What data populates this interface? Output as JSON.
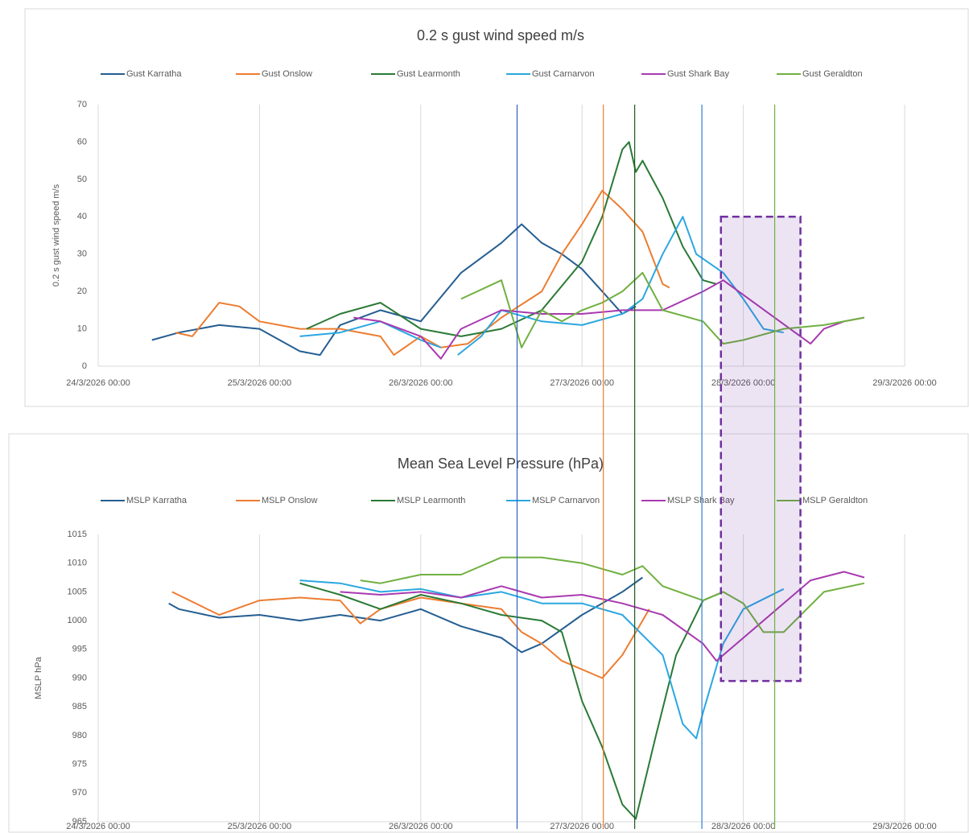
{
  "chart_data": [
    {
      "type": "line",
      "title": "0.2 s gust wind speed m/s",
      "ylabel": "0.2 s gust wind speed m/s",
      "xlim": [
        "24/3/2026 00:00",
        "29/3/2026 00:00"
      ],
      "xticks": [
        "24/3/2026 00:00",
        "25/3/2026 00:00",
        "26/3/2026 00:00",
        "27/3/2026 00:00",
        "28/3/2026 00:00",
        "29/3/2026 00:00"
      ],
      "ylim": [
        0,
        70
      ],
      "yticks": [
        0,
        10,
        20,
        30,
        40,
        50,
        60,
        70
      ],
      "grid": "x",
      "series": [
        {
          "name": "Gust Karratha",
          "color": "#255e91",
          "x": [
            "24/3/2026 08:00",
            "24/3/2026 12:00",
            "24/3/2026 18:00",
            "25/3/2026 00:00",
            "25/3/2026 06:00",
            "25/3/2026 09:00",
            "25/3/2026 12:00",
            "25/3/2026 18:00",
            "26/3/2026 00:00",
            "26/3/2026 06:00",
            "26/3/2026 12:00",
            "26/3/2026 15:00",
            "26/3/2026 18:00",
            "26/3/2026 21:00",
            "27/3/2026 00:00",
            "27/3/2026 03:00",
            "27/3/2026 06:00",
            "27/3/2026 08:00"
          ],
          "values": [
            7,
            9,
            11,
            10,
            4,
            3,
            11,
            15,
            12,
            25,
            33,
            38,
            33,
            30,
            26,
            20,
            14,
            16
          ]
        },
        {
          "name": "Gust Onslow",
          "color": "#ed7d31",
          "x": [
            "24/3/2026 11:30",
            "24/3/2026 14:00",
            "24/3/2026 18:00",
            "24/3/2026 21:00",
            "25/3/2026 00:00",
            "25/3/2026 06:00",
            "25/3/2026 12:00",
            "25/3/2026 18:00",
            "25/3/2026 20:00",
            "26/3/2026 00:00",
            "26/3/2026 03:00",
            "26/3/2026 07:00",
            "26/3/2026 12:00",
            "26/3/2026 18:00",
            "26/3/2026 21:00",
            "27/3/2026 00:00",
            "27/3/2026 03:00",
            "27/3/2026 06:00",
            "27/3/2026 09:00",
            "27/3/2026 12:00",
            "27/3/2026 13:00"
          ],
          "values": [
            9,
            8,
            17,
            16,
            12,
            10,
            10,
            8,
            3,
            8,
            5,
            6,
            13,
            20,
            30,
            38,
            47,
            42,
            36,
            22,
            21
          ]
        },
        {
          "name": "Gust Learmonth",
          "color": "#2a7a35",
          "x": [
            "25/3/2026 07:00",
            "25/3/2026 12:00",
            "25/3/2026 18:00",
            "26/3/2026 00:00",
            "26/3/2026 06:00",
            "26/3/2026 12:00",
            "26/3/2026 18:00",
            "27/3/2026 00:00",
            "27/3/2026 03:00",
            "27/3/2026 06:00",
            "27/3/2026 07:00",
            "27/3/2026 08:00",
            "27/3/2026 09:00",
            "27/3/2026 12:00",
            "27/3/2026 15:00",
            "27/3/2026 18:00",
            "27/3/2026 20:00"
          ],
          "values": [
            10,
            14,
            17,
            10,
            8,
            10,
            15,
            28,
            40,
            58,
            60,
            52,
            55,
            45,
            32,
            23,
            22
          ]
        },
        {
          "name": "Gust Carnarvon",
          "color": "#2aa7e0",
          "x": [
            "25/3/2026 06:00",
            "25/3/2026 12:00",
            "25/3/2026 18:00",
            "26/3/2026 00:00",
            "26/3/2026 03:00",
            "26/3/2026 04:00",
            "26/3/2026 05:30",
            "26/3/2026 09:00",
            "26/3/2026 12:00",
            "26/3/2026 18:00",
            "27/3/2026 00:00",
            "27/3/2026 06:00",
            "27/3/2026 09:00",
            "27/3/2026 12:00",
            "27/3/2026 15:00",
            "27/3/2026 17:00",
            "27/3/2026 21:00",
            "28/3/2026 00:00",
            "28/3/2026 03:00",
            "28/3/2026 06:00"
          ],
          "values": [
            8,
            9,
            12,
            7,
            5,
            null,
            3,
            8,
            15,
            12,
            11,
            14,
            18,
            30,
            40,
            30,
            25,
            18,
            10,
            9
          ]
        },
        {
          "name": "Gust Shark Bay",
          "color": "#a83ab0",
          "x": [
            "25/3/2026 14:00",
            "25/3/2026 18:00",
            "26/3/2026 00:00",
            "26/3/2026 03:00",
            "26/3/2026 06:00",
            "26/3/2026 12:00",
            "26/3/2026 18:00",
            "27/3/2026 00:00",
            "27/3/2026 06:00",
            "27/3/2026 12:00",
            "27/3/2026 18:00",
            "27/3/2026 21:00",
            "28/3/2026 10:00",
            "28/3/2026 12:00",
            "28/3/2026 15:00",
            "28/3/2026 18:00"
          ],
          "values": [
            13,
            12,
            8,
            2,
            10,
            15,
            14,
            14,
            15,
            15,
            20,
            23,
            6,
            10,
            12,
            13
          ]
        },
        {
          "name": "Gust Geraldton",
          "color": "#70b040",
          "x": [
            "26/3/2026 06:00",
            "26/3/2026 12:00",
            "26/3/2026 15:00",
            "26/3/2026 18:00",
            "26/3/2026 21:00",
            "27/3/2026 00:00",
            "27/3/2026 03:00",
            "27/3/2026 06:00",
            "27/3/2026 09:00",
            "27/3/2026 12:00",
            "27/3/2026 18:00",
            "27/3/2026 21:00",
            "28/3/2026 00:00",
            "28/3/2026 06:00",
            "28/3/2026 12:00",
            "28/3/2026 18:00"
          ],
          "values": [
            18,
            23,
            5,
            15,
            12,
            15,
            17,
            20,
            25,
            15,
            12,
            6,
            7,
            10,
            11,
            13
          ]
        }
      ]
    },
    {
      "type": "line",
      "title": "Mean Sea Level Pressure (hPa)",
      "ylabel": "MSLP hPa",
      "xlim": [
        "24/3/2026 00:00",
        "29/3/2026 00:00"
      ],
      "xticks": [
        "24/3/2026 00:00",
        "25/3/2026 00:00",
        "26/3/2026 00:00",
        "27/3/2026 00:00",
        "28/3/2026 00:00",
        "29/3/2026 00:00"
      ],
      "ylim": [
        965,
        1015
      ],
      "yticks": [
        965,
        970,
        975,
        980,
        985,
        990,
        995,
        1000,
        1005,
        1010,
        1015
      ],
      "grid": "x",
      "series": [
        {
          "name": "MSLP Karratha",
          "color": "#255e91",
          "x": [
            "24/3/2026 10:30",
            "24/3/2026 12:00",
            "24/3/2026 18:00",
            "25/3/2026 00:00",
            "25/3/2026 06:00",
            "25/3/2026 12:00",
            "25/3/2026 18:00",
            "26/3/2026 00:00",
            "26/3/2026 06:00",
            "26/3/2026 12:00",
            "26/3/2026 15:00",
            "26/3/2026 18:00",
            "27/3/2026 00:00",
            "27/3/2026 06:00",
            "27/3/2026 09:00"
          ],
          "values": [
            1003,
            1002,
            1000.5,
            1001,
            1000,
            1001,
            1000,
            1002,
            999,
            997,
            994.5,
            996,
            1001,
            1005,
            1007.5
          ]
        },
        {
          "name": "MSLP Onslow",
          "color": "#ed7d31",
          "x": [
            "24/3/2026 11:00",
            "24/3/2026 18:00",
            "25/3/2026 00:00",
            "25/3/2026 06:00",
            "25/3/2026 12:00",
            "25/3/2026 15:00",
            "25/3/2026 18:00",
            "26/3/2026 00:00",
            "26/3/2026 06:00",
            "26/3/2026 12:00",
            "26/3/2026 15:00",
            "26/3/2026 18:00",
            "26/3/2026 21:00",
            "27/3/2026 03:00",
            "27/3/2026 06:00",
            "27/3/2026 09:00",
            "27/3/2026 10:00"
          ],
          "values": [
            1005,
            1001,
            1003.5,
            1004,
            1003.5,
            999.5,
            1002,
            1004,
            1003,
            1002,
            998,
            996,
            993,
            990,
            994,
            1000,
            1002
          ]
        },
        {
          "name": "MSLP Learmonth",
          "color": "#2a7a35",
          "x": [
            "25/3/2026 06:00",
            "25/3/2026 12:00",
            "25/3/2026 18:00",
            "26/3/2026 00:00",
            "26/3/2026 06:00",
            "26/3/2026 12:00",
            "26/3/2026 18:00",
            "26/3/2026 21:00",
            "27/3/2026 00:00",
            "27/3/2026 03:00",
            "27/3/2026 06:00",
            "27/3/2026 08:00",
            "27/3/2026 11:00",
            "27/3/2026 14:00",
            "27/3/2026 18:00",
            "27/3/2026 21:00"
          ],
          "values": [
            1006.5,
            1004.5,
            1002,
            1004.5,
            1003,
            1001,
            1000,
            998,
            986,
            978,
            968,
            965.5,
            980,
            994,
            1003.5,
            1005
          ]
        },
        {
          "name": "MSLP Carnarvon",
          "color": "#2aa7e0",
          "x": [
            "25/3/2026 06:00",
            "25/3/2026 12:00",
            "25/3/2026 18:00",
            "26/3/2026 00:00",
            "26/3/2026 06:00",
            "26/3/2026 12:00",
            "26/3/2026 18:00",
            "27/3/2026 00:00",
            "27/3/2026 06:00",
            "27/3/2026 12:00",
            "27/3/2026 15:00",
            "27/3/2026 17:00",
            "27/3/2026 18:00",
            "27/3/2026 21:00",
            "28/3/2026 00:00",
            "28/3/2026 06:00"
          ],
          "values": [
            1007,
            1006.5,
            1005,
            1005.5,
            1004,
            1005,
            1003,
            1003,
            1001,
            994,
            982,
            979.5,
            984,
            996,
            1002,
            1005.5
          ]
        },
        {
          "name": "MSLP Shark Bay",
          "color": "#a83ab0",
          "x": [
            "25/3/2026 12:00",
            "25/3/2026 18:00",
            "26/3/2026 00:00",
            "26/3/2026 06:00",
            "26/3/2026 12:00",
            "26/3/2026 18:00",
            "27/3/2026 00:00",
            "27/3/2026 06:00",
            "27/3/2026 12:00",
            "27/3/2026 18:00",
            "27/3/2026 20:00",
            "28/3/2026 10:00",
            "28/3/2026 15:00",
            "28/3/2026 18:00"
          ],
          "values": [
            1005,
            1004.5,
            1005,
            1004,
            1006,
            1004,
            1004.5,
            1003,
            1001,
            996,
            993,
            1007,
            1008.5,
            1007.5
          ]
        },
        {
          "name": "MSLP Geraldton",
          "color": "#70b040",
          "x": [
            "25/3/2026 15:00",
            "25/3/2026 18:00",
            "26/3/2026 00:00",
            "26/3/2026 06:00",
            "26/3/2026 12:00",
            "26/3/2026 18:00",
            "27/3/2026 00:00",
            "27/3/2026 06:00",
            "27/3/2026 09:00",
            "27/3/2026 12:00",
            "27/3/2026 18:00",
            "27/3/2026 21:00",
            "28/3/2026 00:00",
            "28/3/2026 03:00",
            "28/3/2026 06:00",
            "28/3/2026 12:00",
            "28/3/2026 18:00"
          ],
          "values": [
            1007,
            1006.5,
            1008,
            1008,
            1011,
            1011,
            1010,
            1008,
            1009.5,
            1006,
            1003.5,
            1005,
            1003,
            998,
            998,
            1005,
            1006.5
          ]
        }
      ]
    }
  ],
  "annotations": {
    "vlines": [
      {
        "x": "26/3/2026 14:20",
        "color": "#2f5fc0"
      },
      {
        "x": "27/3/2026 03:10",
        "color": "#ed7d31"
      },
      {
        "x": "27/3/2026 07:50",
        "color": "#1e5a20"
      },
      {
        "x": "27/3/2026 17:50",
        "color": "#2f80d0"
      },
      {
        "x": "28/3/2026 04:40",
        "color": "#70b040"
      }
    ],
    "box": {
      "x": [
        "27/3/2026 20:40",
        "28/3/2026 08:30"
      ],
      "top": 40,
      "bottom": 989.5,
      "color": "#7030a0"
    }
  }
}
